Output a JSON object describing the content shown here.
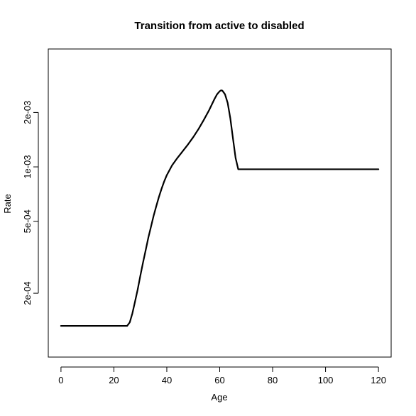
{
  "chart_data": {
    "type": "line",
    "title": "Transition from active to disabled",
    "xlabel": "Age",
    "ylabel": "Rate",
    "xlim": [
      -4.8,
      124.8
    ],
    "ylim_log10": [
      -4.052,
      -2.348
    ],
    "y_scale": "log",
    "x_ticks": [
      {
        "value": 0,
        "label": "0"
      },
      {
        "value": 20,
        "label": "20"
      },
      {
        "value": 40,
        "label": "40"
      },
      {
        "value": 60,
        "label": "60"
      },
      {
        "value": 80,
        "label": "80"
      },
      {
        "value": 100,
        "label": "100"
      },
      {
        "value": 120,
        "label": "120"
      }
    ],
    "y_ticks": [
      {
        "value": 0.0002,
        "label": "2e-04"
      },
      {
        "value": 0.0005,
        "label": "5e-04"
      },
      {
        "value": 0.001,
        "label": "1e-03"
      },
      {
        "value": 0.002,
        "label": "2e-03"
      }
    ],
    "series": [
      {
        "color": "#000000",
        "x": [
          0,
          5,
          10,
          15,
          20,
          24,
          25,
          26,
          27,
          28,
          29,
          30,
          31,
          32,
          33,
          34,
          35,
          36,
          37,
          38,
          39,
          40,
          42,
          44,
          46,
          48,
          50,
          52,
          54,
          56,
          57,
          58,
          59,
          60,
          60.5,
          61,
          62,
          63,
          64,
          65,
          66,
          67,
          70,
          80,
          90,
          100,
          110,
          120
        ],
        "y": [
          0.000132,
          0.000132,
          0.000132,
          0.000132,
          0.000132,
          0.000132,
          0.000132,
          0.000138,
          0.000155,
          0.00018,
          0.00021,
          0.00025,
          0.000295,
          0.000345,
          0.000405,
          0.000465,
          0.000535,
          0.000605,
          0.00068,
          0.000755,
          0.00083,
          0.0009,
          0.00102,
          0.00112,
          0.00122,
          0.00133,
          0.00146,
          0.00162,
          0.00182,
          0.00206,
          0.00221,
          0.00237,
          0.00252,
          0.00262,
          0.00265,
          0.00264,
          0.00252,
          0.00226,
          0.00186,
          0.00144,
          0.00112,
          0.00097,
          0.00097,
          0.00097,
          0.00097,
          0.00097,
          0.00097,
          0.00097
        ]
      }
    ]
  }
}
